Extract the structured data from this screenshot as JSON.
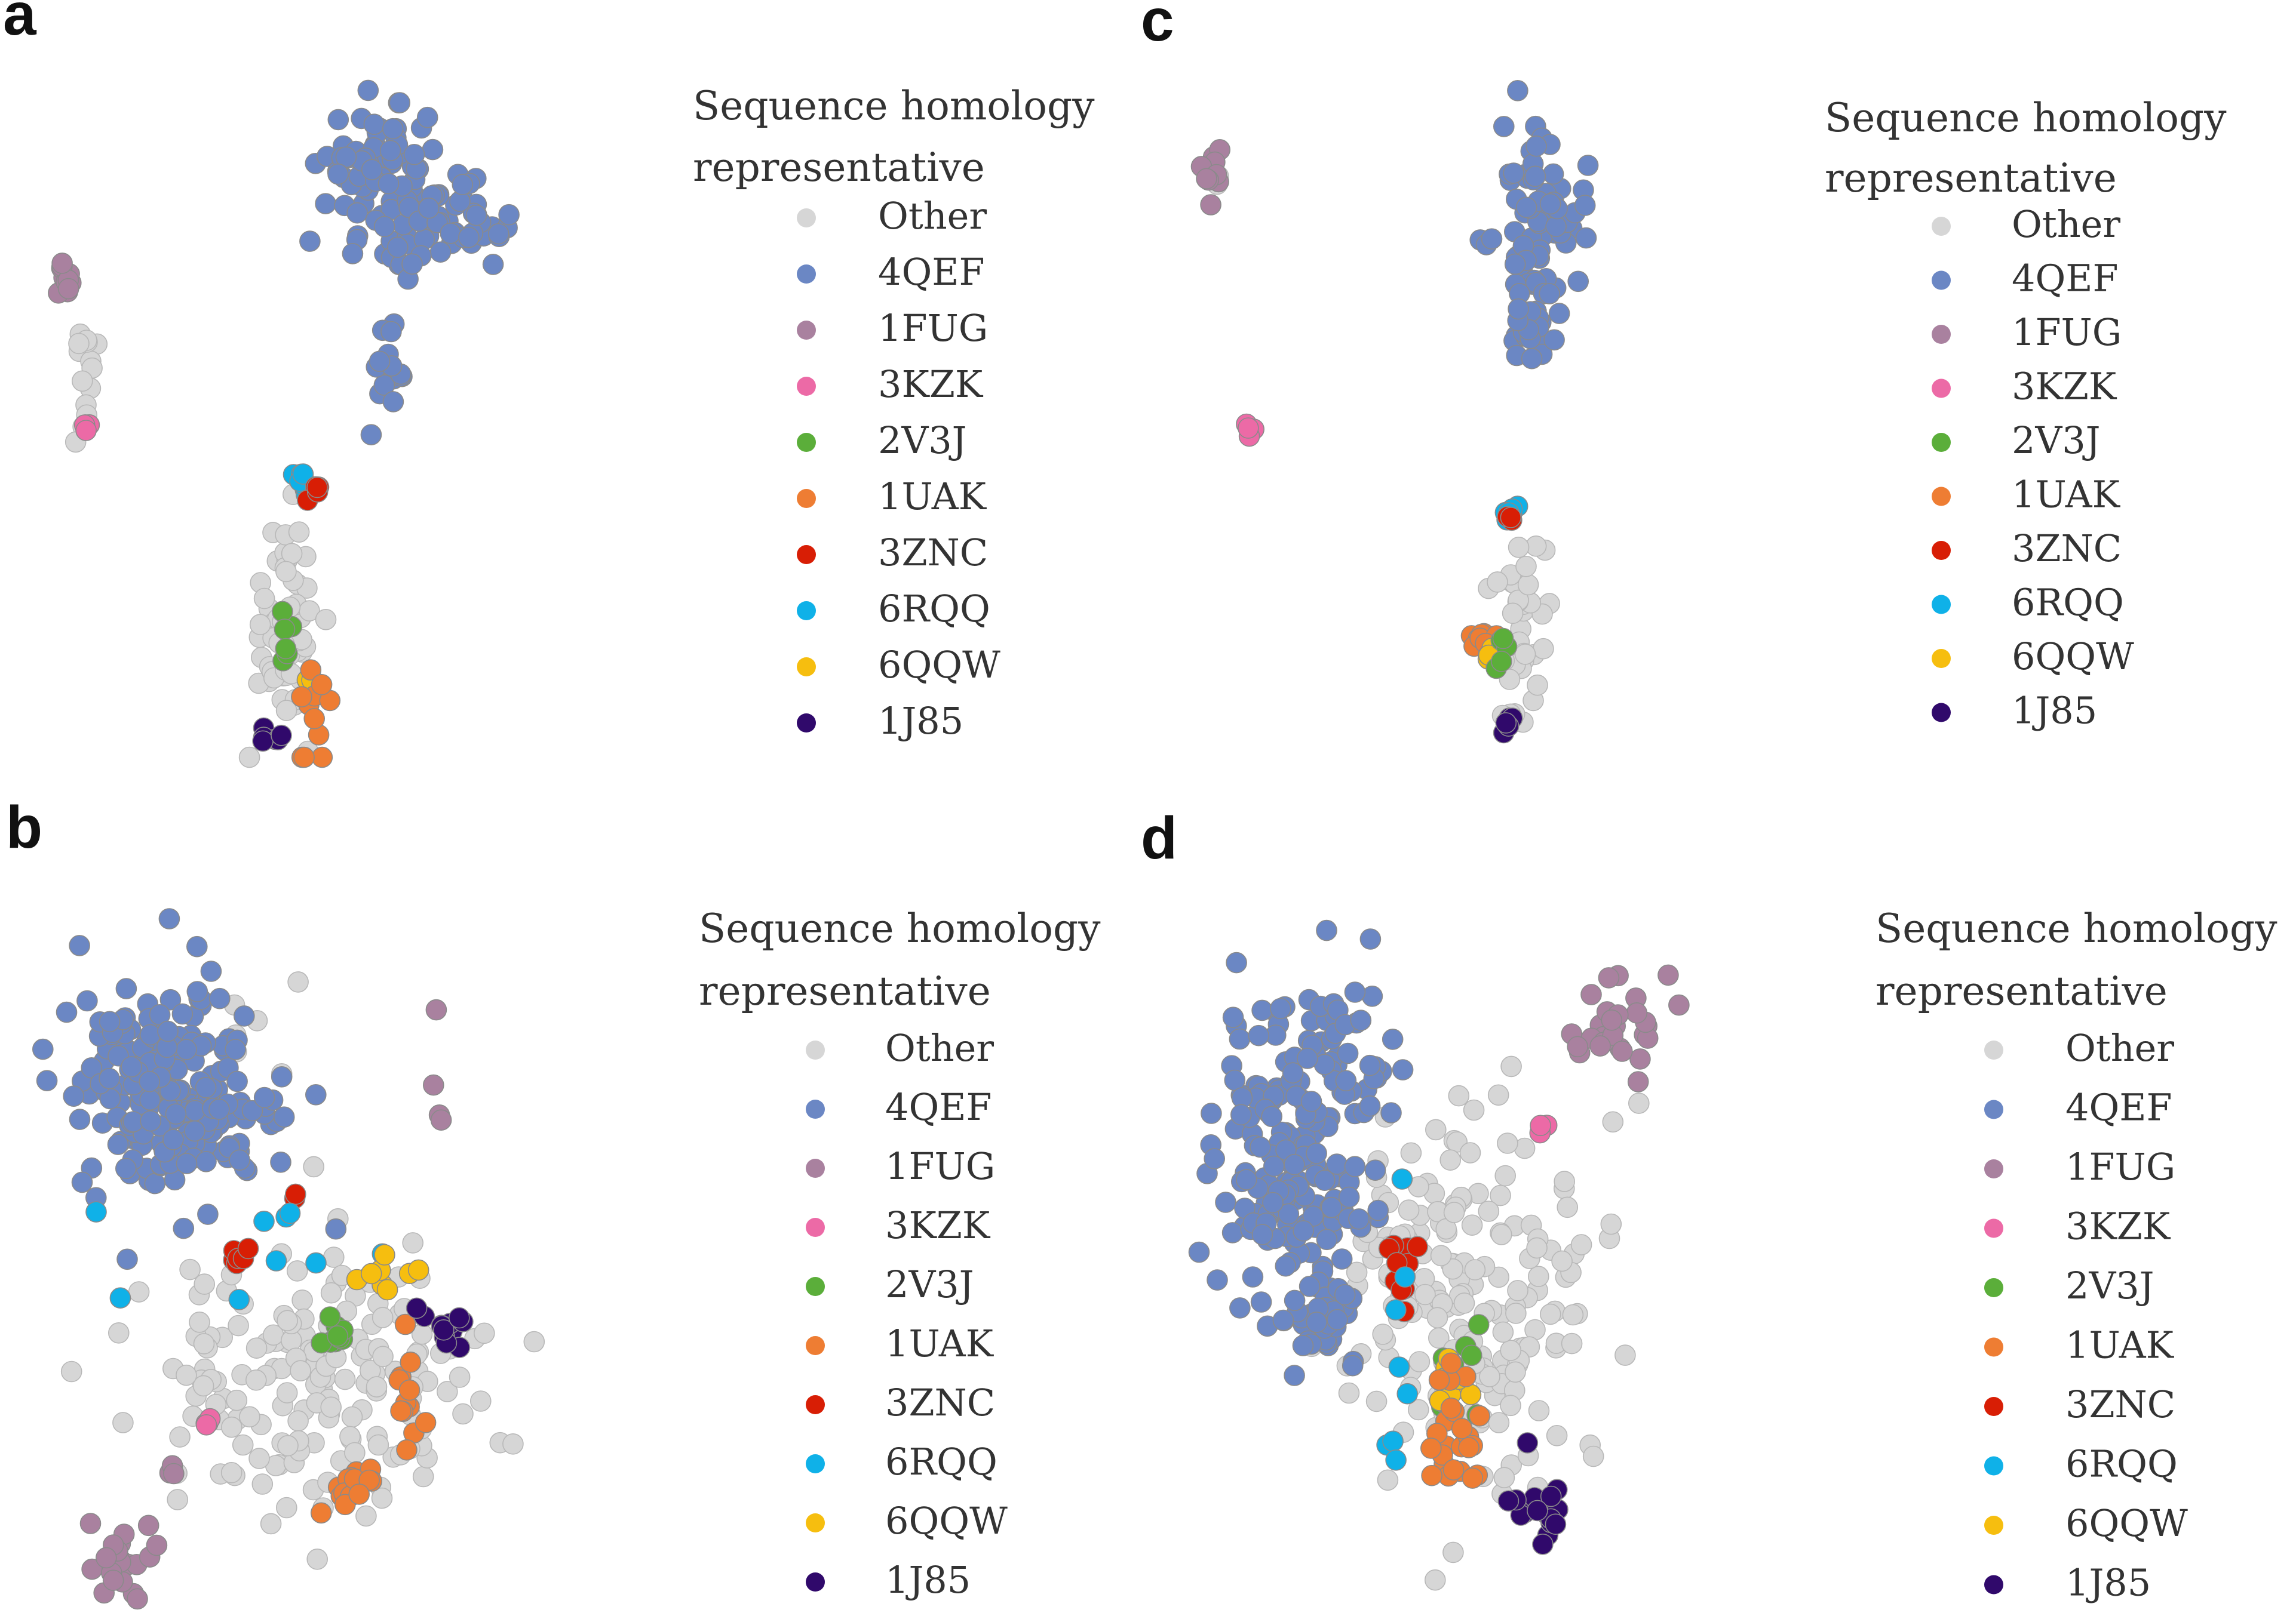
{
  "figure": {
    "legend_title_line1": "Sequence homology",
    "legend_title_line2": "representative",
    "categories": [
      {
        "name": "Other",
        "color": "#d6d6d6"
      },
      {
        "name": "4QEF",
        "color": "#6b87c4"
      },
      {
        "name": "1FUG",
        "color": "#a9819f"
      },
      {
        "name": "3KZK",
        "color": "#ec6aa6"
      },
      {
        "name": "2V3J",
        "color": "#5bae3a"
      },
      {
        "name": "1UAK",
        "color": "#ee7d33"
      },
      {
        "name": "3ZNC",
        "color": "#d81e05"
      },
      {
        "name": "6RQQ",
        "color": "#0fb1e8"
      },
      {
        "name": "6QQW",
        "color": "#f6be0f"
      },
      {
        "name": "1J85",
        "color": "#30096b"
      }
    ]
  },
  "chart_data": [
    {
      "panel": "a",
      "type": "scatter",
      "axes": "hidden",
      "legend_position": "right",
      "xlim": [
        0,
        100
      ],
      "ylim": [
        0,
        100
      ],
      "clusters": [
        {
          "category": "4QEF",
          "count": 85,
          "cx": 51,
          "cy": 87,
          "sx": 4,
          "sy": 5
        },
        {
          "category": "4QEF",
          "count": 45,
          "cx": 60,
          "cy": 79,
          "sx": 4,
          "sy": 3
        },
        {
          "category": "4QEF",
          "count": 18,
          "cx": 52,
          "cy": 57,
          "sx": 1.4,
          "sy": 3
        },
        {
          "category": "1FUG",
          "count": 12,
          "cx": 6,
          "cy": 71,
          "sx": 1.0,
          "sy": 2.0
        },
        {
          "category": "Other",
          "count": 14,
          "cx": 8.5,
          "cy": 58,
          "sx": 1.0,
          "sy": 6
        },
        {
          "category": "3KZK",
          "count": 4,
          "cx": 9,
          "cy": 50,
          "sx": 0.4,
          "sy": 0.6
        },
        {
          "category": "6RQQ",
          "count": 8,
          "cx": 39,
          "cy": 42,
          "sx": 0.8,
          "sy": 1.5
        },
        {
          "category": "3ZNC",
          "count": 5,
          "cx": 41,
          "cy": 40,
          "sx": 0.6,
          "sy": 0.6
        },
        {
          "category": "Other",
          "count": 60,
          "cx": 37,
          "cy": 20,
          "sx": 2.5,
          "sy": 8
        },
        {
          "category": "2V3J",
          "count": 6,
          "cx": 37.5,
          "cy": 16,
          "sx": 0.6,
          "sy": 3
        },
        {
          "category": "6QQW",
          "count": 4,
          "cx": 40.5,
          "cy": 12,
          "sx": 0.5,
          "sy": 0.5
        },
        {
          "category": "1UAK",
          "count": 12,
          "cx": 41.5,
          "cy": 5,
          "sx": 1.2,
          "sy": 4
        },
        {
          "category": "1J85",
          "count": 6,
          "cx": 35,
          "cy": 4.5,
          "sx": 0.7,
          "sy": 0.6
        }
      ]
    },
    {
      "panel": "c",
      "type": "scatter",
      "axes": "hidden",
      "legend_position": "right",
      "xlim": [
        0,
        100
      ],
      "ylim": [
        0,
        100
      ],
      "clusters": [
        {
          "category": "1FUG",
          "count": 9,
          "cx": 6.5,
          "cy": 88,
          "sx": 0.8,
          "sy": 2.5
        },
        {
          "category": "Other",
          "count": 2,
          "cx": 7.5,
          "cy": 86,
          "sx": 0.4,
          "sy": 0.6
        },
        {
          "category": "3KZK",
          "count": 4,
          "cx": 12,
          "cy": 49,
          "sx": 0.4,
          "sy": 0.6
        },
        {
          "category": "4QEF",
          "count": 70,
          "cx": 55,
          "cy": 80,
          "sx": 3,
          "sy": 6
        },
        {
          "category": "4QEF",
          "count": 25,
          "cx": 54,
          "cy": 65,
          "sx": 1.8,
          "sy": 3
        },
        {
          "category": "6RQQ",
          "count": 6,
          "cx": 50.5,
          "cy": 37,
          "sx": 0.8,
          "sy": 0.8
        },
        {
          "category": "3ZNC",
          "count": 3,
          "cx": 50.5,
          "cy": 36,
          "sx": 0.4,
          "sy": 0.4
        },
        {
          "category": "Other",
          "count": 40,
          "cx": 52,
          "cy": 20,
          "sx": 2,
          "sy": 7
        },
        {
          "category": "1UAK",
          "count": 12,
          "cx": 47,
          "cy": 18,
          "sx": 1.0,
          "sy": 1.6
        },
        {
          "category": "6QQW",
          "count": 5,
          "cx": 48,
          "cy": 16,
          "sx": 0.6,
          "sy": 0.6
        },
        {
          "category": "2V3J",
          "count": 5,
          "cx": 49.5,
          "cy": 17,
          "sx": 1.0,
          "sy": 2
        },
        {
          "category": "1J85",
          "count": 6,
          "cx": 50.5,
          "cy": 5.5,
          "sx": 0.8,
          "sy": 0.8
        }
      ]
    },
    {
      "panel": "b",
      "type": "scatter",
      "axes": "hidden",
      "legend_position": "right",
      "xlim": [
        0,
        100
      ],
      "ylim": [
        0,
        100
      ],
      "clusters": [
        {
          "category": "4QEF",
          "count": 220,
          "cx": 20,
          "cy": 73,
          "sx": 7,
          "sy": 8
        },
        {
          "category": "Other",
          "count": 6,
          "cx": 30,
          "cy": 80,
          "sx": 3,
          "sy": 4
        },
        {
          "category": "1FUG",
          "count": 4,
          "cx": 55,
          "cy": 72,
          "sx": 3,
          "sy": 5
        },
        {
          "category": "1FUG",
          "count": 20,
          "cx": 12,
          "cy": 6,
          "sx": 3,
          "sy": 3
        },
        {
          "category": "1FUG",
          "count": 3,
          "cx": 19,
          "cy": 18,
          "sx": 1,
          "sy": 1.5
        },
        {
          "category": "3KZK",
          "count": 4,
          "cx": 24,
          "cy": 26,
          "sx": 0.5,
          "sy": 0.5
        },
        {
          "category": "3ZNC",
          "count": 8,
          "cx": 28.5,
          "cy": 50,
          "sx": 0.8,
          "sy": 1.2
        },
        {
          "category": "3ZNC",
          "count": 2,
          "cx": 37,
          "cy": 58,
          "sx": 0.4,
          "sy": 0.5
        },
        {
          "category": "6RQQ",
          "count": 9,
          "cx": 32,
          "cy": 50,
          "sx": 8,
          "sy": 8
        },
        {
          "category": "Other",
          "count": 170,
          "cx": 40,
          "cy": 33,
          "sx": 13,
          "sy": 10
        },
        {
          "category": "2V3J",
          "count": 9,
          "cx": 42,
          "cy": 38,
          "sx": 1.5,
          "sy": 1.2
        },
        {
          "category": "6QQW",
          "count": 8,
          "cx": 49,
          "cy": 47,
          "sx": 2,
          "sy": 2
        },
        {
          "category": "1UAK",
          "count": 18,
          "cx": 45,
          "cy": 18,
          "sx": 1.6,
          "sy": 2.2
        },
        {
          "category": "1UAK",
          "count": 12,
          "cx": 53,
          "cy": 30,
          "sx": 1.5,
          "sy": 5
        },
        {
          "category": "1J85",
          "count": 14,
          "cx": 58.5,
          "cy": 40,
          "sx": 2,
          "sy": 1.5
        }
      ]
    },
    {
      "panel": "d",
      "type": "scatter",
      "axes": "hidden",
      "legend_position": "right",
      "xlim": [
        0,
        100
      ],
      "ylim": [
        0,
        100
      ],
      "clusters": [
        {
          "category": "4QEF",
          "count": 200,
          "cx": 16,
          "cy": 65,
          "sx": 5,
          "sy": 11
        },
        {
          "category": "4QEF",
          "count": 30,
          "cx": 20,
          "cy": 41,
          "sx": 3,
          "sy": 3
        },
        {
          "category": "4QEF",
          "count": 20,
          "cx": 25,
          "cy": 80,
          "sx": 3,
          "sy": 5
        },
        {
          "category": "1FUG",
          "count": 28,
          "cx": 60,
          "cy": 84,
          "sx": 4,
          "sy": 4
        },
        {
          "category": "3KZK",
          "count": 3,
          "cx": 50,
          "cy": 69,
          "sx": 0.4,
          "sy": 0.6
        },
        {
          "category": "Other",
          "count": 190,
          "cx": 40,
          "cy": 44,
          "sx": 8,
          "sy": 15
        },
        {
          "category": "3ZNC",
          "count": 10,
          "cx": 31,
          "cy": 47,
          "sx": 2,
          "sy": 4
        },
        {
          "category": "6RQQ",
          "count": 8,
          "cx": 30,
          "cy": 35,
          "sx": 1.5,
          "sy": 9
        },
        {
          "category": "2V3J",
          "count": 8,
          "cx": 40,
          "cy": 35,
          "sx": 3,
          "sy": 7
        },
        {
          "category": "6QQW",
          "count": 14,
          "cx": 38,
          "cy": 32,
          "sx": 1.2,
          "sy": 2
        },
        {
          "category": "1UAK",
          "count": 25,
          "cx": 38,
          "cy": 24,
          "sx": 2,
          "sy": 7
        },
        {
          "category": "1J85",
          "count": 16,
          "cx": 50,
          "cy": 15,
          "sx": 2,
          "sy": 3
        }
      ]
    }
  ]
}
